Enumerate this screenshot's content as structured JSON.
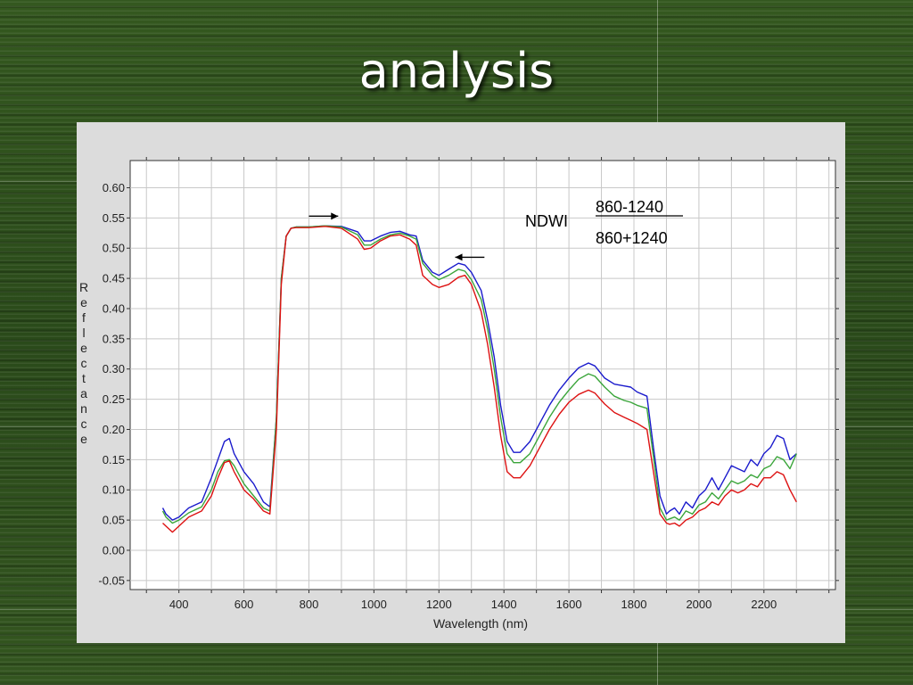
{
  "slide": {
    "title": "analysis"
  },
  "annotation": {
    "label": "NDWI",
    "numerator": "860-1240",
    "denominator": "860+1240"
  },
  "chart_data": {
    "type": "line",
    "title": "",
    "xlabel": "Wavelength (nm)",
    "ylabel": "Reflectance",
    "xlim": [
      250,
      2420
    ],
    "ylim": [
      -0.065,
      0.645
    ],
    "xticks": [
      400,
      600,
      800,
      1000,
      1200,
      1400,
      1600,
      1800,
      2000,
      2200
    ],
    "yticks": [
      -0.05,
      0.0,
      0.05,
      0.1,
      0.15,
      0.2,
      0.25,
      0.3,
      0.35,
      0.4,
      0.45,
      0.5,
      0.55,
      0.6
    ],
    "grid": true,
    "legend": "none",
    "arrows": [
      {
        "direction": "right",
        "x_from": 800,
        "x_to": 890,
        "y": 0.553
      },
      {
        "direction": "left",
        "x_from": 1340,
        "x_to": 1250,
        "y": 0.485
      }
    ],
    "series": [
      {
        "color": "#1a1acc",
        "x": [
          350,
          360,
          380,
          400,
          430,
          470,
          500,
          520,
          540,
          555,
          570,
          600,
          630,
          660,
          680,
          700,
          715,
          730,
          745,
          760,
          780,
          800,
          850,
          900,
          950,
          970,
          990,
          1020,
          1050,
          1080,
          1110,
          1130,
          1150,
          1180,
          1200,
          1230,
          1260,
          1280,
          1300,
          1330,
          1350,
          1370,
          1390,
          1410,
          1430,
          1450,
          1480,
          1510,
          1540,
          1570,
          1600,
          1630,
          1660,
          1680,
          1710,
          1740,
          1770,
          1790,
          1810,
          1840,
          1860,
          1880,
          1900,
          1910,
          1925,
          1940,
          1960,
          1980,
          2000,
          2020,
          2040,
          2060,
          2080,
          2100,
          2120,
          2140,
          2160,
          2180,
          2200,
          2220,
          2240,
          2260,
          2280,
          2300
        ],
        "y": [
          0.07,
          0.06,
          0.05,
          0.055,
          0.07,
          0.08,
          0.12,
          0.15,
          0.18,
          0.185,
          0.16,
          0.13,
          0.11,
          0.08,
          0.072,
          0.22,
          0.45,
          0.52,
          0.533,
          0.535,
          0.535,
          0.535,
          0.537,
          0.536,
          0.527,
          0.512,
          0.512,
          0.52,
          0.526,
          0.528,
          0.522,
          0.52,
          0.48,
          0.46,
          0.455,
          0.465,
          0.475,
          0.472,
          0.46,
          0.43,
          0.38,
          0.32,
          0.24,
          0.18,
          0.162,
          0.162,
          0.18,
          0.21,
          0.24,
          0.265,
          0.285,
          0.302,
          0.31,
          0.305,
          0.285,
          0.275,
          0.272,
          0.27,
          0.262,
          0.255,
          0.17,
          0.09,
          0.06,
          0.065,
          0.07,
          0.06,
          0.08,
          0.07,
          0.09,
          0.1,
          0.12,
          0.1,
          0.12,
          0.14,
          0.135,
          0.13,
          0.15,
          0.14,
          0.16,
          0.17,
          0.19,
          0.185,
          0.15,
          0.16
        ]
      },
      {
        "color": "#3aa53a",
        "x": [
          350,
          360,
          380,
          400,
          430,
          470,
          500,
          520,
          540,
          555,
          570,
          600,
          630,
          660,
          680,
          700,
          715,
          730,
          745,
          760,
          780,
          800,
          850,
          900,
          950,
          970,
          990,
          1020,
          1050,
          1080,
          1110,
          1130,
          1150,
          1180,
          1200,
          1230,
          1260,
          1280,
          1300,
          1330,
          1350,
          1370,
          1390,
          1410,
          1430,
          1450,
          1480,
          1510,
          1540,
          1570,
          1600,
          1630,
          1660,
          1680,
          1710,
          1740,
          1770,
          1790,
          1810,
          1840,
          1860,
          1880,
          1900,
          1910,
          1925,
          1940,
          1960,
          1980,
          2000,
          2020,
          2040,
          2060,
          2080,
          2100,
          2120,
          2140,
          2160,
          2180,
          2200,
          2220,
          2240,
          2260,
          2280,
          2300
        ],
        "y": [
          0.065,
          0.055,
          0.045,
          0.05,
          0.062,
          0.072,
          0.1,
          0.13,
          0.148,
          0.15,
          0.14,
          0.11,
          0.09,
          0.07,
          0.065,
          0.22,
          0.45,
          0.52,
          0.533,
          0.535,
          0.535,
          0.535,
          0.537,
          0.535,
          0.522,
          0.505,
          0.505,
          0.515,
          0.522,
          0.525,
          0.52,
          0.515,
          0.475,
          0.455,
          0.448,
          0.455,
          0.465,
          0.462,
          0.448,
          0.415,
          0.365,
          0.3,
          0.22,
          0.16,
          0.145,
          0.145,
          0.16,
          0.19,
          0.22,
          0.245,
          0.265,
          0.283,
          0.292,
          0.288,
          0.27,
          0.255,
          0.248,
          0.245,
          0.24,
          0.235,
          0.155,
          0.07,
          0.05,
          0.052,
          0.055,
          0.05,
          0.065,
          0.06,
          0.075,
          0.08,
          0.095,
          0.085,
          0.1,
          0.115,
          0.11,
          0.115,
          0.125,
          0.12,
          0.135,
          0.14,
          0.155,
          0.15,
          0.135,
          0.16
        ]
      },
      {
        "color": "#dd1111",
        "x": [
          350,
          360,
          380,
          400,
          430,
          470,
          500,
          520,
          540,
          555,
          570,
          600,
          630,
          660,
          680,
          700,
          715,
          730,
          745,
          760,
          780,
          800,
          850,
          900,
          950,
          970,
          990,
          1020,
          1050,
          1080,
          1110,
          1130,
          1150,
          1180,
          1200,
          1230,
          1260,
          1280,
          1300,
          1330,
          1350,
          1370,
          1390,
          1410,
          1430,
          1450,
          1480,
          1510,
          1540,
          1570,
          1600,
          1630,
          1660,
          1680,
          1710,
          1740,
          1770,
          1790,
          1810,
          1840,
          1860,
          1880,
          1900,
          1910,
          1925,
          1940,
          1960,
          1980,
          2000,
          2020,
          2040,
          2060,
          2080,
          2100,
          2120,
          2140,
          2160,
          2180,
          2200,
          2220,
          2240,
          2260,
          2280,
          2300
        ],
        "y": [
          0.045,
          0.04,
          0.03,
          0.04,
          0.055,
          0.065,
          0.09,
          0.12,
          0.145,
          0.148,
          0.13,
          0.1,
          0.085,
          0.065,
          0.06,
          0.2,
          0.44,
          0.52,
          0.533,
          0.534,
          0.534,
          0.534,
          0.536,
          0.533,
          0.515,
          0.498,
          0.5,
          0.512,
          0.52,
          0.522,
          0.515,
          0.505,
          0.455,
          0.44,
          0.435,
          0.44,
          0.452,
          0.455,
          0.44,
          0.395,
          0.34,
          0.27,
          0.19,
          0.13,
          0.12,
          0.12,
          0.14,
          0.17,
          0.2,
          0.225,
          0.245,
          0.258,
          0.265,
          0.26,
          0.242,
          0.228,
          0.22,
          0.215,
          0.21,
          0.2,
          0.13,
          0.06,
          0.045,
          0.043,
          0.045,
          0.04,
          0.05,
          0.055,
          0.065,
          0.07,
          0.08,
          0.075,
          0.09,
          0.1,
          0.095,
          0.1,
          0.11,
          0.105,
          0.12,
          0.12,
          0.13,
          0.125,
          0.1,
          0.08
        ]
      }
    ]
  }
}
